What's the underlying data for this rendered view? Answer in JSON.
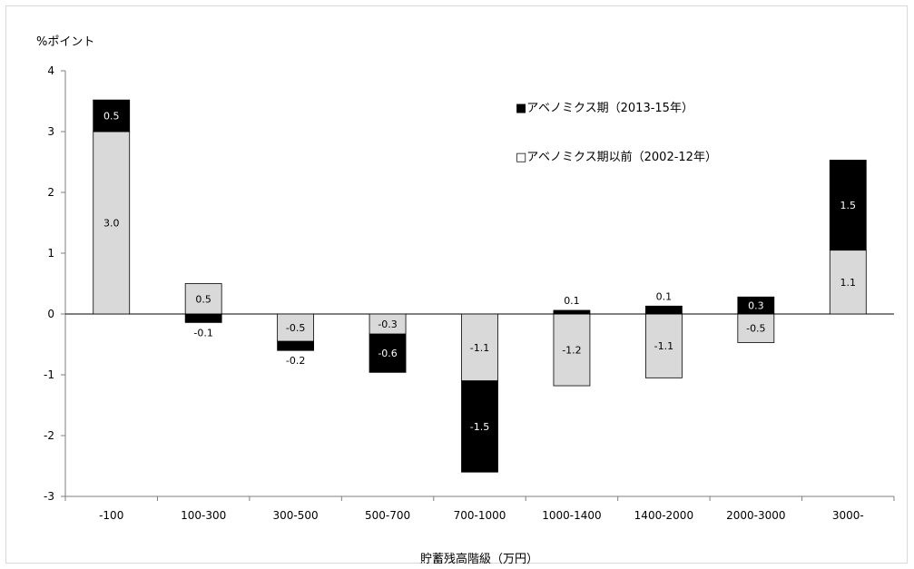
{
  "chart_data": {
    "type": "bar",
    "stacked": true,
    "title": "",
    "ylabel": "%ポイント",
    "xlabel": "貯蓄残高階級（万円）",
    "ylim": [
      -3,
      4
    ],
    "yticks": [
      "-3",
      "-2",
      "-1",
      "0",
      "1",
      "2",
      "3",
      "4"
    ],
    "grid": false,
    "legend_position": "top-right",
    "categories": [
      "-100",
      "100-300",
      "300-500",
      "500-700",
      "700-1000",
      "1000-1400",
      "1400-2000",
      "2000-3000",
      "3000-"
    ],
    "series": [
      {
        "name": "アベノミクス期以前（2002-12年）",
        "color": "#d9d9d9",
        "values": [
          3.0,
          0.5,
          -0.45,
          -0.33,
          -1.1,
          -1.18,
          -1.05,
          -0.47,
          1.05
        ],
        "labels": [
          "3.0",
          "0.5",
          "-0.5",
          "-0.3",
          "-1.1",
          "-1.2",
          "-1.1",
          "-0.5",
          "1.1"
        ]
      },
      {
        "name": "アベノミクス期（2013-15年）",
        "color": "#000000",
        "values": [
          0.52,
          -0.14,
          -0.15,
          -0.63,
          -1.5,
          0.06,
          0.13,
          0.28,
          1.48
        ],
        "labels": [
          "0.5",
          "-0.1",
          "-0.2",
          "-0.6",
          "-1.5",
          "0.1",
          "0.1",
          "0.3",
          "1.5"
        ]
      }
    ],
    "legend": [
      {
        "label": "■アベノミクス期（2013-15年）"
      },
      {
        "label": "□アベノミクス期以前（2002-12年）"
      }
    ]
  }
}
